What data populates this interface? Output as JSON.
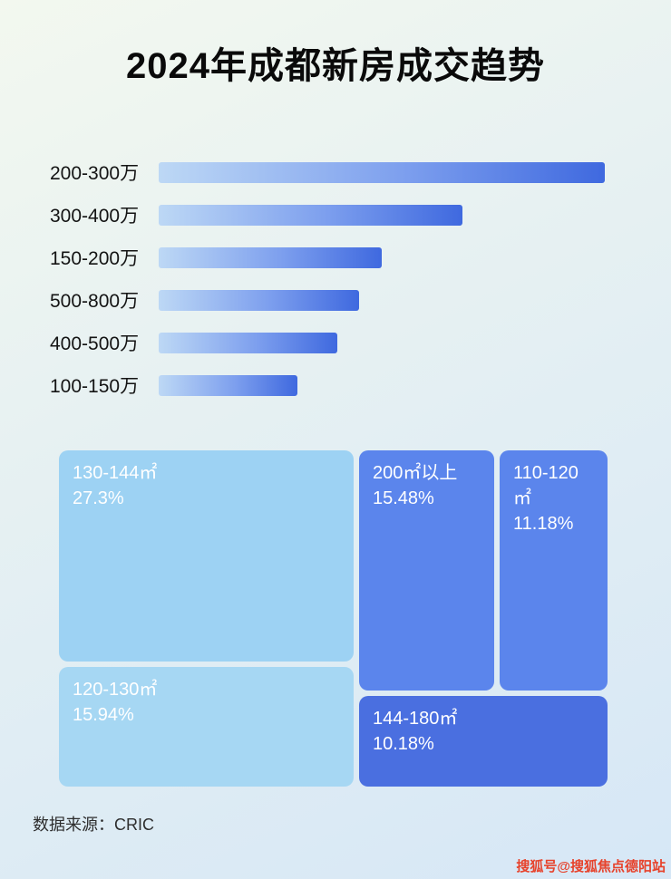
{
  "page": {
    "title": "2024年成都新房成交趋势",
    "source": "数据来源：CRIC",
    "watermark": "搜狐号@搜狐焦点德阳站"
  },
  "colors": {
    "bar_gradient_start": "#bdd8f5",
    "bar_gradient_end": "#3f69df",
    "treemap_light_blue": "#9dd2f3",
    "treemap_medium_blue": "#5b85ec",
    "treemap_dark_blue": "#4a6fe0",
    "watermark_red": "#e7422b"
  },
  "chart_data": [
    {
      "type": "bar",
      "orientation": "horizontal",
      "categories": [
        "200-300万",
        "300-400万",
        "150-200万",
        "500-800万",
        "400-500万",
        "100-150万"
      ],
      "values": [
        100,
        68,
        50,
        45,
        40,
        31
      ],
      "value_scale": "relative length, longest bar = 100 (bars carry no numeric labels in image)",
      "grid": false,
      "legend": false
    },
    {
      "type": "treemap",
      "items": [
        {
          "label": "130-144㎡",
          "percent": "27.3%",
          "value": 27.3
        },
        {
          "label": "200㎡以上",
          "percent": "15.48%",
          "value": 15.48
        },
        {
          "label": "110-120㎡",
          "percent": "11.18%",
          "value": 11.18
        },
        {
          "label": "120-130㎡",
          "percent": "15.94%",
          "value": 15.94
        },
        {
          "label": "144-180㎡",
          "percent": "10.18%",
          "value": 10.18
        }
      ]
    }
  ]
}
